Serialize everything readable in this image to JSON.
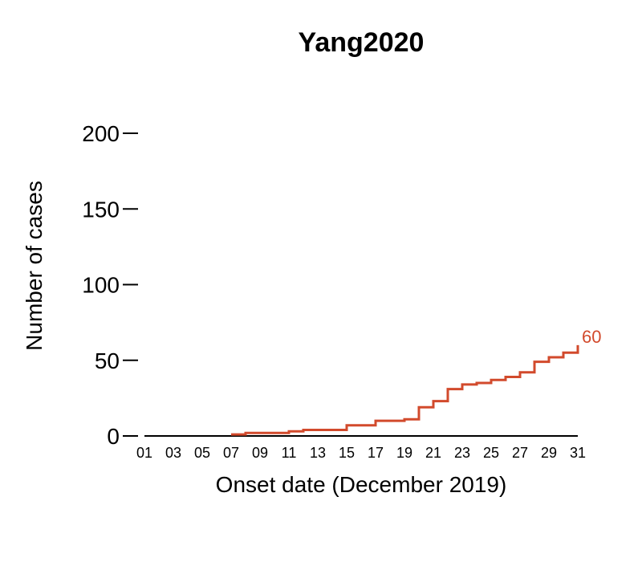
{
  "chart_data": {
    "type": "line",
    "step": true,
    "title": "Yang2020",
    "xlabel": "Onset date (December 2019)",
    "ylabel": "Number of cases",
    "ylim": [
      0,
      200
    ],
    "yticks": [
      0,
      50,
      100,
      150,
      200
    ],
    "xlim": [
      1,
      31
    ],
    "xtick_labels": [
      "01",
      "03",
      "05",
      "07",
      "09",
      "11",
      "13",
      "15",
      "17",
      "19",
      "21",
      "23",
      "25",
      "27",
      "29",
      "31"
    ],
    "grid": false,
    "series": [
      {
        "color": "#d24a2c",
        "end_label": "60",
        "points": [
          {
            "x": 7,
            "y": 1
          },
          {
            "x": 8,
            "y": 2
          },
          {
            "x": 9,
            "y": 2
          },
          {
            "x": 10,
            "y": 2
          },
          {
            "x": 11,
            "y": 3
          },
          {
            "x": 12,
            "y": 4
          },
          {
            "x": 13,
            "y": 4
          },
          {
            "x": 14,
            "y": 4
          },
          {
            "x": 15,
            "y": 7
          },
          {
            "x": 16,
            "y": 7
          },
          {
            "x": 17,
            "y": 10
          },
          {
            "x": 18,
            "y": 10
          },
          {
            "x": 19,
            "y": 11
          },
          {
            "x": 20,
            "y": 19
          },
          {
            "x": 21,
            "y": 23
          },
          {
            "x": 22,
            "y": 31
          },
          {
            "x": 23,
            "y": 34
          },
          {
            "x": 24,
            "y": 35
          },
          {
            "x": 25,
            "y": 37
          },
          {
            "x": 26,
            "y": 39
          },
          {
            "x": 27,
            "y": 42
          },
          {
            "x": 28,
            "y": 49
          },
          {
            "x": 29,
            "y": 52
          },
          {
            "x": 30,
            "y": 55
          },
          {
            "x": 31,
            "y": 60
          }
        ]
      }
    ]
  }
}
